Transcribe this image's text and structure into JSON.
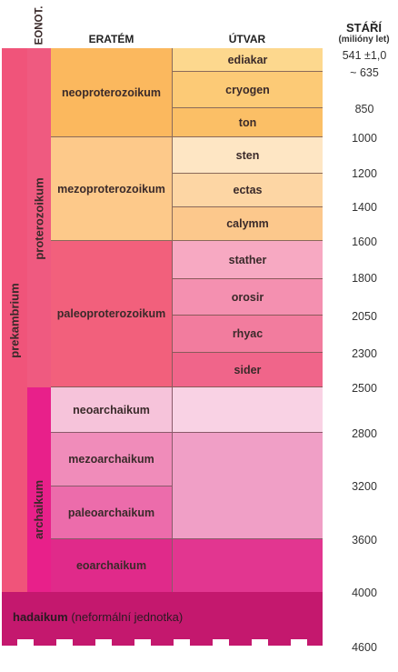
{
  "headers": {
    "eonothem": "EONOT.",
    "erathem": "ERATÉM",
    "system": "ÚTVAR",
    "age_title": "STÁŘÍ",
    "age_unit": "(milióny let)"
  },
  "eons": {
    "prekambrium": "prekambrium",
    "proterozoikum": "proterozoikum",
    "archaikum": "archaikum"
  },
  "eras": {
    "neoproterozoikum": "neoproterozoikum",
    "mezoproterozoikum": "mezoproterozoikum",
    "paleoproterozoikum": "paleoproterozoikum",
    "neoarchaikum": "neoarchaikum",
    "mezoarchaikum": "mezoarchaikum",
    "paleoarchaikum": "paleoarchaikum",
    "eoarchaikum": "eoarchaikum"
  },
  "periods": {
    "ediakar": "ediakar",
    "cryogen": "cryogen",
    "ton": "ton",
    "sten": "sten",
    "ectas": "ectas",
    "calymm": "calymm",
    "stather": "stather",
    "orosir": "orosir",
    "rhyac": "rhyac",
    "sider": "sider"
  },
  "hadaikum": {
    "name": "hadaikum",
    "note": "(neformální jednotka)"
  },
  "ages": {
    "a541": "541 ±1,0",
    "a635": "~ 635",
    "a850": "850",
    "a1000": "1000",
    "a1200": "1200",
    "a1400": "1400",
    "a1600": "1600",
    "a1800": "1800",
    "a2050": "2050",
    "a2300": "2300",
    "a2500": "2500",
    "a2800": "2800",
    "a3200": "3200",
    "a3600": "3600",
    "a4000": "4000",
    "a4600": "4600"
  },
  "colors": {
    "prekambrium": "#f0547a",
    "proterozoikum": "#ef5a80",
    "archaikum": "#e8208a",
    "neoproterozoikum": "#fbb85e",
    "mezoproterozoikum": "#fdc98a",
    "paleoproterozoikum": "#f2607c",
    "neoarchaikum": "#f6c3da",
    "mezoarchaikum": "#f08cba",
    "paleoarchaikum": "#ec6cab",
    "eoarchaikum": "#e02a8a",
    "hadaikum": "#c4186e"
  }
}
